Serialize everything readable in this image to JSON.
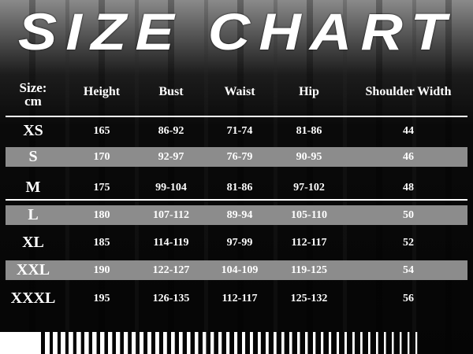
{
  "title": "SIZE CHART",
  "table": {
    "headers": [
      "Size:\ncm",
      "Height",
      "Bust",
      "Waist",
      "Hip",
      "Shoulder Width"
    ],
    "header_size_line1": "Size:",
    "header_size_line2": "cm",
    "rows": [
      {
        "size": "XS",
        "height": "165",
        "bust": "86-92",
        "waist": "71-74",
        "hip": "81-86",
        "shoulder": "44"
      },
      {
        "size": "S",
        "height": "170",
        "bust": "92-97",
        "waist": "76-79",
        "hip": "90-95",
        "shoulder": "46"
      },
      {
        "size": "M",
        "height": "175",
        "bust": "99-104",
        "waist": "81-86",
        "hip": "97-102",
        "shoulder": "48"
      },
      {
        "size": "L",
        "height": "180",
        "bust": "107-112",
        "waist": "89-94",
        "hip": "105-110",
        "shoulder": "50"
      },
      {
        "size": "XL",
        "height": "185",
        "bust": "114-119",
        "waist": "97-99",
        "hip": "112-117",
        "shoulder": "52"
      },
      {
        "size": "XXL",
        "height": "190",
        "bust": "122-127",
        "waist": "104-109",
        "hip": "119-125",
        "shoulder": "54"
      },
      {
        "size": "XXXL",
        "height": "195",
        "bust": "126-135",
        "waist": "112-117",
        "hip": "125-132",
        "shoulder": "56"
      }
    ]
  },
  "colors": {
    "band": "#8c8c8c",
    "text": "#ffffff",
    "background": "#000000"
  }
}
